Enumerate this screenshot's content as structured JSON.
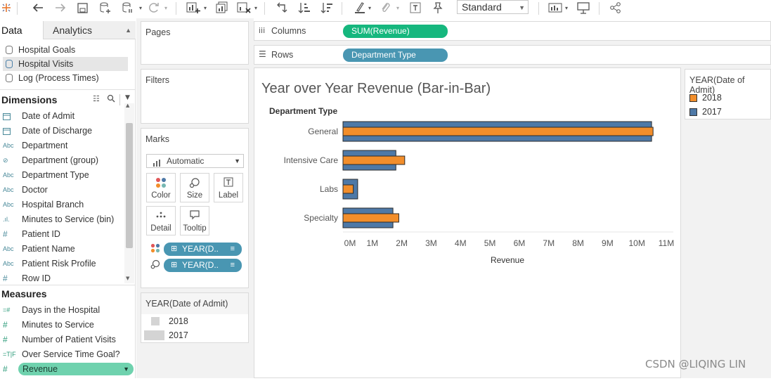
{
  "toolbar": {
    "view_size": "Standard"
  },
  "data_pane": {
    "tabs": [
      "Data",
      "Analytics"
    ],
    "data_sources": [
      "Hospital Goals",
      "Hospital Visits",
      "Log (Process Times)"
    ],
    "selected_source": 1,
    "dimensions_title": "Dimensions",
    "dimensions": [
      {
        "icon": "calendar-icon",
        "label": "Date of Admit"
      },
      {
        "icon": "calendar-icon",
        "label": "Date of Discharge"
      },
      {
        "icon": "abc-icon",
        "label": "Department"
      },
      {
        "icon": "paperclip-icon",
        "label": "Department (group)"
      },
      {
        "icon": "abc-icon",
        "label": "Department Type"
      },
      {
        "icon": "abc-icon",
        "label": "Doctor"
      },
      {
        "icon": "abc-icon",
        "label": "Hospital Branch"
      },
      {
        "icon": "histogram-icon",
        "label": "Minutes to Service (bin)"
      },
      {
        "icon": "hash-icon",
        "label": "Patient ID"
      },
      {
        "icon": "abc-icon",
        "label": "Patient Name"
      },
      {
        "icon": "abc-icon",
        "label": "Patient Risk Profile"
      },
      {
        "icon": "hash-icon",
        "label": "Row ID"
      }
    ],
    "measures_title": "Measures",
    "measures": [
      {
        "icon": "hash-calc-icon",
        "label": "Days in the Hospital"
      },
      {
        "icon": "hash-icon",
        "label": "Minutes to Service"
      },
      {
        "icon": "hash-icon",
        "label": "Number of Patient Visits"
      },
      {
        "icon": "boolean-icon",
        "label": "Over Service Time Goal?"
      },
      {
        "icon": "hash-icon",
        "label": "Revenue"
      }
    ]
  },
  "pages": {
    "title": "Pages"
  },
  "filters": {
    "title": "Filters"
  },
  "marks": {
    "title": "Marks",
    "type": "Automatic",
    "buttons": [
      "Color",
      "Size",
      "Label",
      "Detail",
      "Tooltip"
    ],
    "pills": [
      "YEAR(D..",
      "YEAR(D.."
    ]
  },
  "size_legend": {
    "title": "YEAR(Date of Admit)",
    "items": [
      "2018",
      "2017"
    ]
  },
  "shelves": {
    "columns_label": "Columns",
    "columns_pill": "SUM(Revenue)",
    "rows_label": "Rows",
    "rows_pill": "Department Type"
  },
  "color_legend": {
    "title": "YEAR(Date of Admit)",
    "items": [
      {
        "label": "2018",
        "color": "#f28e2b"
      },
      {
        "label": "2017",
        "color": "#4e79a7"
      }
    ]
  },
  "chart_data": {
    "type": "bar",
    "title": "Year over Year Revenue (Bar-in-Bar)",
    "row_header": "Department Type",
    "xlabel": "Revenue",
    "categories": [
      "General",
      "Intensive Care",
      "Labs",
      "Specialty"
    ],
    "series": [
      {
        "name": "2017",
        "color": "#4e79a7",
        "values": [
          10.5,
          1.8,
          0.5,
          1.7
        ]
      },
      {
        "name": "2018",
        "color": "#f28e2b",
        "values": [
          10.55,
          2.1,
          0.35,
          1.9
        ]
      }
    ],
    "xlim": [
      0,
      11
    ],
    "x_ticks": [
      "0M",
      "1M",
      "2M",
      "3M",
      "4M",
      "5M",
      "6M",
      "7M",
      "8M",
      "9M",
      "10M",
      "11M"
    ],
    "unit": "M"
  },
  "watermark": "CSDN @LIQING LIN"
}
